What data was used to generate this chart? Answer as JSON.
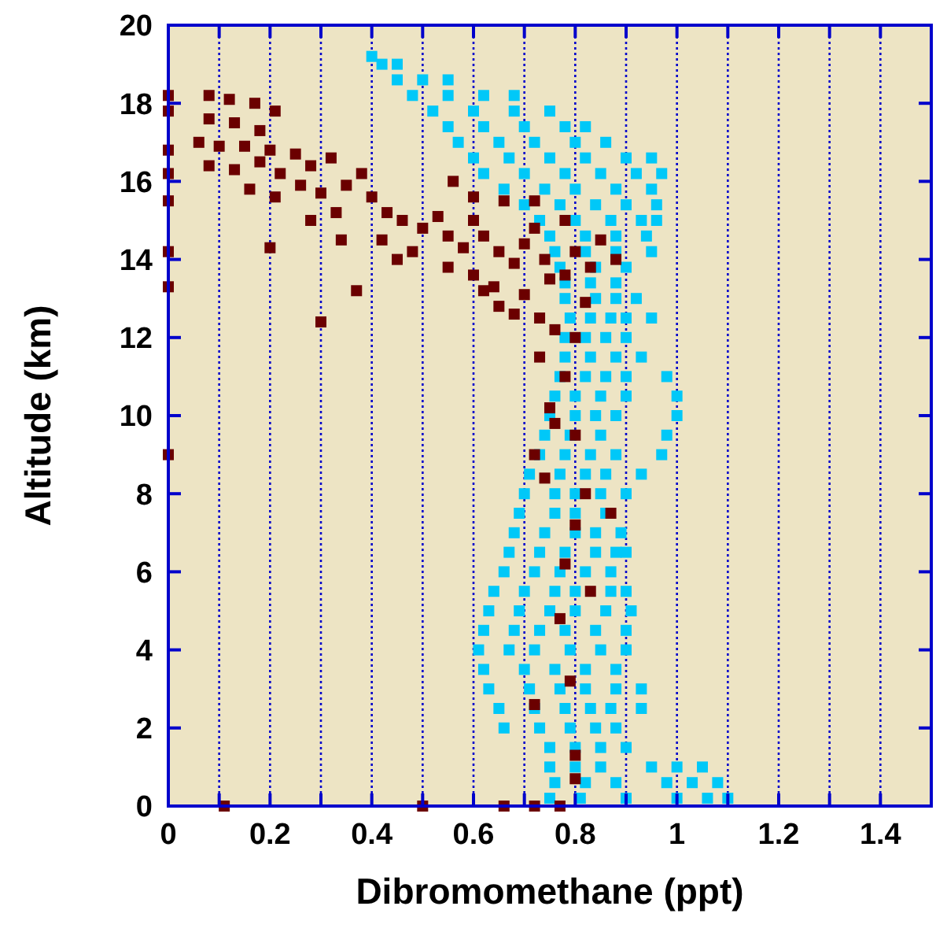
{
  "chart_data": {
    "type": "scatter",
    "xlabel": "Dibromomethane (ppt)",
    "ylabel": "Altitude (km)",
    "xlim": [
      0,
      1.5
    ],
    "ylim": [
      0,
      20
    ],
    "xticks": [
      0,
      {
        "value": 0.1,
        "label": null
      },
      0.2,
      {
        "value": 0.3,
        "label": null
      },
      0.4,
      {
        "value": 0.5,
        "label": null
      },
      0.6,
      {
        "value": 0.7,
        "label": null
      },
      0.8,
      {
        "value": 0.9,
        "label": null
      },
      1,
      {
        "value": 1.1,
        "label": null
      },
      1.2,
      {
        "value": 1.3,
        "label": null
      },
      1.4
    ],
    "yticks": [
      0,
      2,
      4,
      6,
      8,
      10,
      12,
      14,
      16,
      18,
      20
    ],
    "grid": "x",
    "marker": "square",
    "series": [
      {
        "color": "#00c8f8",
        "x": [
          0.4,
          0.42,
          0.45,
          0.45,
          0.5,
          0.55,
          0.48,
          0.55,
          0.62,
          0.68,
          0.52,
          0.6,
          0.68,
          0.75,
          0.55,
          0.62,
          0.7,
          0.78,
          0.82,
          0.57,
          0.65,
          0.72,
          0.8,
          0.86,
          0.6,
          0.67,
          0.75,
          0.82,
          0.9,
          0.95,
          0.62,
          0.7,
          0.78,
          0.85,
          0.92,
          0.97,
          0.66,
          0.74,
          0.8,
          0.88,
          0.95,
          0.7,
          0.77,
          0.84,
          0.9,
          0.96,
          0.73,
          0.8,
          0.87,
          0.93,
          0.96,
          0.75,
          0.82,
          0.88,
          0.94,
          0.76,
          0.82,
          0.88,
          0.95,
          0.77,
          0.84,
          0.9,
          0.78,
          0.83,
          0.88,
          0.78,
          0.84,
          0.88,
          0.92,
          0.79,
          0.83,
          0.87,
          0.9,
          0.95,
          0.78,
          0.82,
          0.86,
          0.9,
          0.78,
          0.83,
          0.88,
          0.93,
          0.77,
          0.82,
          0.86,
          0.9,
          0.98,
          0.76,
          0.8,
          0.85,
          0.9,
          1.0,
          0.75,
          0.8,
          0.84,
          0.88,
          1.0,
          0.74,
          0.79,
          0.85,
          0.98,
          0.73,
          0.78,
          0.83,
          0.88,
          0.97,
          0.71,
          0.77,
          0.82,
          0.86,
          0.93,
          0.7,
          0.76,
          0.8,
          0.85,
          0.9,
          0.69,
          0.76,
          0.8,
          0.86,
          0.68,
          0.74,
          0.8,
          0.84,
          0.89,
          0.67,
          0.73,
          0.78,
          0.84,
          0.88,
          0.9,
          0.66,
          0.72,
          0.77,
          0.82,
          0.87,
          0.64,
          0.7,
          0.76,
          0.8,
          0.87,
          0.9,
          0.63,
          0.69,
          0.75,
          0.8,
          0.86,
          0.91,
          0.62,
          0.68,
          0.73,
          0.78,
          0.84,
          0.9,
          0.61,
          0.67,
          0.72,
          0.79,
          0.85,
          0.9,
          0.62,
          0.7,
          0.76,
          0.82,
          0.88,
          0.63,
          0.71,
          0.77,
          0.82,
          0.88,
          0.93,
          0.65,
          0.72,
          0.78,
          0.83,
          0.87,
          0.93,
          0.66,
          0.73,
          0.79,
          0.84,
          0.88,
          0.75,
          0.8,
          0.85,
          0.9,
          0.75,
          0.8,
          0.85,
          0.95,
          1.0,
          1.05,
          0.76,
          0.82,
          0.88,
          0.98,
          1.03,
          1.08,
          0.75,
          0.81,
          0.9,
          1.0,
          1.06,
          1.1
        ],
        "values": [
          19.2,
          19.0,
          19.0,
          18.6,
          18.6,
          18.6,
          18.2,
          18.2,
          18.2,
          18.2,
          17.8,
          17.8,
          17.8,
          17.8,
          17.4,
          17.4,
          17.4,
          17.4,
          17.4,
          17.0,
          17.0,
          17.0,
          17.0,
          17.0,
          16.6,
          16.6,
          16.6,
          16.6,
          16.6,
          16.6,
          16.2,
          16.2,
          16.2,
          16.2,
          16.2,
          16.2,
          15.8,
          15.8,
          15.8,
          15.8,
          15.8,
          15.4,
          15.4,
          15.4,
          15.4,
          15.4,
          15.0,
          15.0,
          15.0,
          15.0,
          15.0,
          14.6,
          14.6,
          14.6,
          14.6,
          14.2,
          14.2,
          14.2,
          14.2,
          13.8,
          13.8,
          13.8,
          13.4,
          13.4,
          13.4,
          13.0,
          13.0,
          13.0,
          13.0,
          12.5,
          12.5,
          12.5,
          12.5,
          12.5,
          12.0,
          12.0,
          12.0,
          12.0,
          11.5,
          11.5,
          11.5,
          11.5,
          11.0,
          11.0,
          11.0,
          11.0,
          11.0,
          10.5,
          10.5,
          10.5,
          10.5,
          10.5,
          10.0,
          10.0,
          10.0,
          10.0,
          10.0,
          9.5,
          9.5,
          9.5,
          9.5,
          9.0,
          9.0,
          9.0,
          9.0,
          9.0,
          8.5,
          8.5,
          8.5,
          8.5,
          8.5,
          8.0,
          8.0,
          8.0,
          8.0,
          8.0,
          7.5,
          7.5,
          7.5,
          7.5,
          7.0,
          7.0,
          7.0,
          7.0,
          7.0,
          6.5,
          6.5,
          6.5,
          6.5,
          6.5,
          6.5,
          6.0,
          6.0,
          6.0,
          6.0,
          6.0,
          5.5,
          5.5,
          5.5,
          5.5,
          5.5,
          5.5,
          5.0,
          5.0,
          5.0,
          5.0,
          5.0,
          5.0,
          4.5,
          4.5,
          4.5,
          4.5,
          4.5,
          4.5,
          4.0,
          4.0,
          4.0,
          4.0,
          4.0,
          4.0,
          3.5,
          3.5,
          3.5,
          3.5,
          3.5,
          3.0,
          3.0,
          3.0,
          3.0,
          3.0,
          3.0,
          2.5,
          2.5,
          2.5,
          2.5,
          2.5,
          2.5,
          2.0,
          2.0,
          2.0,
          2.0,
          2.0,
          1.5,
          1.5,
          1.5,
          1.5,
          1.0,
          1.0,
          1.0,
          1.0,
          1.0,
          1.0,
          0.6,
          0.6,
          0.6,
          0.6,
          0.6,
          0.6,
          0.2,
          0.2,
          0.2,
          0.2,
          0.2,
          0.2
        ]
      },
      {
        "color": "#6b0000",
        "x": [
          0,
          0,
          0,
          0,
          0,
          0,
          0,
          0,
          0.08,
          0.12,
          0.17,
          0.21,
          0.08,
          0.13,
          0.18,
          0.06,
          0.1,
          0.15,
          0.2,
          0.25,
          0.08,
          0.13,
          0.18,
          0.22,
          0.28,
          0.32,
          0.16,
          0.21,
          0.26,
          0.3,
          0.35,
          0.38,
          0.4,
          0.33,
          0.28,
          0.34,
          0.2,
          0.43,
          0.46,
          0.42,
          0.48,
          0.5,
          0.53,
          0.55,
          0.58,
          0.6,
          0.62,
          0.65,
          0.55,
          0.6,
          0.64,
          0.68,
          0.7,
          0.72,
          0.74,
          0.7,
          0.75,
          0.73,
          0.78,
          0.8,
          0.76,
          0.68,
          0.65,
          0.62,
          0.45,
          0.37,
          0.3,
          0.6,
          0.56,
          0.66,
          0.72,
          0.78,
          0.85,
          0.88,
          0.83,
          0.82,
          0.8,
          0.73,
          0.75,
          0.76,
          0.8,
          0.78,
          0.72,
          0.74,
          0.82,
          0.87,
          0.8,
          0.78,
          0.83,
          0.77,
          0.79,
          0.72,
          0.8,
          0.8,
          0.11,
          0.5,
          0.66,
          0.72,
          0.77
        ],
        "values": [
          18.2,
          17.8,
          16.8,
          16.2,
          15.5,
          14.2,
          13.3,
          9.0,
          18.2,
          18.1,
          18.0,
          17.8,
          17.6,
          17.5,
          17.3,
          17.0,
          16.9,
          16.9,
          16.8,
          16.7,
          16.4,
          16.3,
          16.5,
          16.2,
          16.4,
          16.6,
          15.8,
          15.6,
          15.9,
          15.7,
          15.9,
          16.2,
          15.6,
          15.2,
          15.0,
          14.5,
          14.3,
          15.2,
          15.0,
          14.5,
          14.2,
          14.8,
          15.1,
          14.6,
          14.3,
          15.0,
          14.6,
          14.2,
          13.8,
          13.6,
          13.3,
          13.9,
          14.4,
          14.8,
          14.0,
          13.1,
          13.5,
          12.5,
          13.6,
          14.2,
          12.2,
          12.6,
          12.8,
          13.2,
          14.0,
          13.2,
          12.4,
          15.6,
          16.0,
          15.5,
          15.5,
          15.0,
          14.5,
          14.0,
          13.8,
          12.9,
          12.0,
          11.5,
          10.2,
          9.8,
          9.5,
          11.0,
          9.0,
          8.4,
          8.0,
          7.5,
          7.2,
          6.2,
          5.5,
          4.8,
          3.2,
          2.6,
          1.3,
          0.7,
          0,
          0,
          0,
          0,
          0
        ]
      }
    ]
  }
}
